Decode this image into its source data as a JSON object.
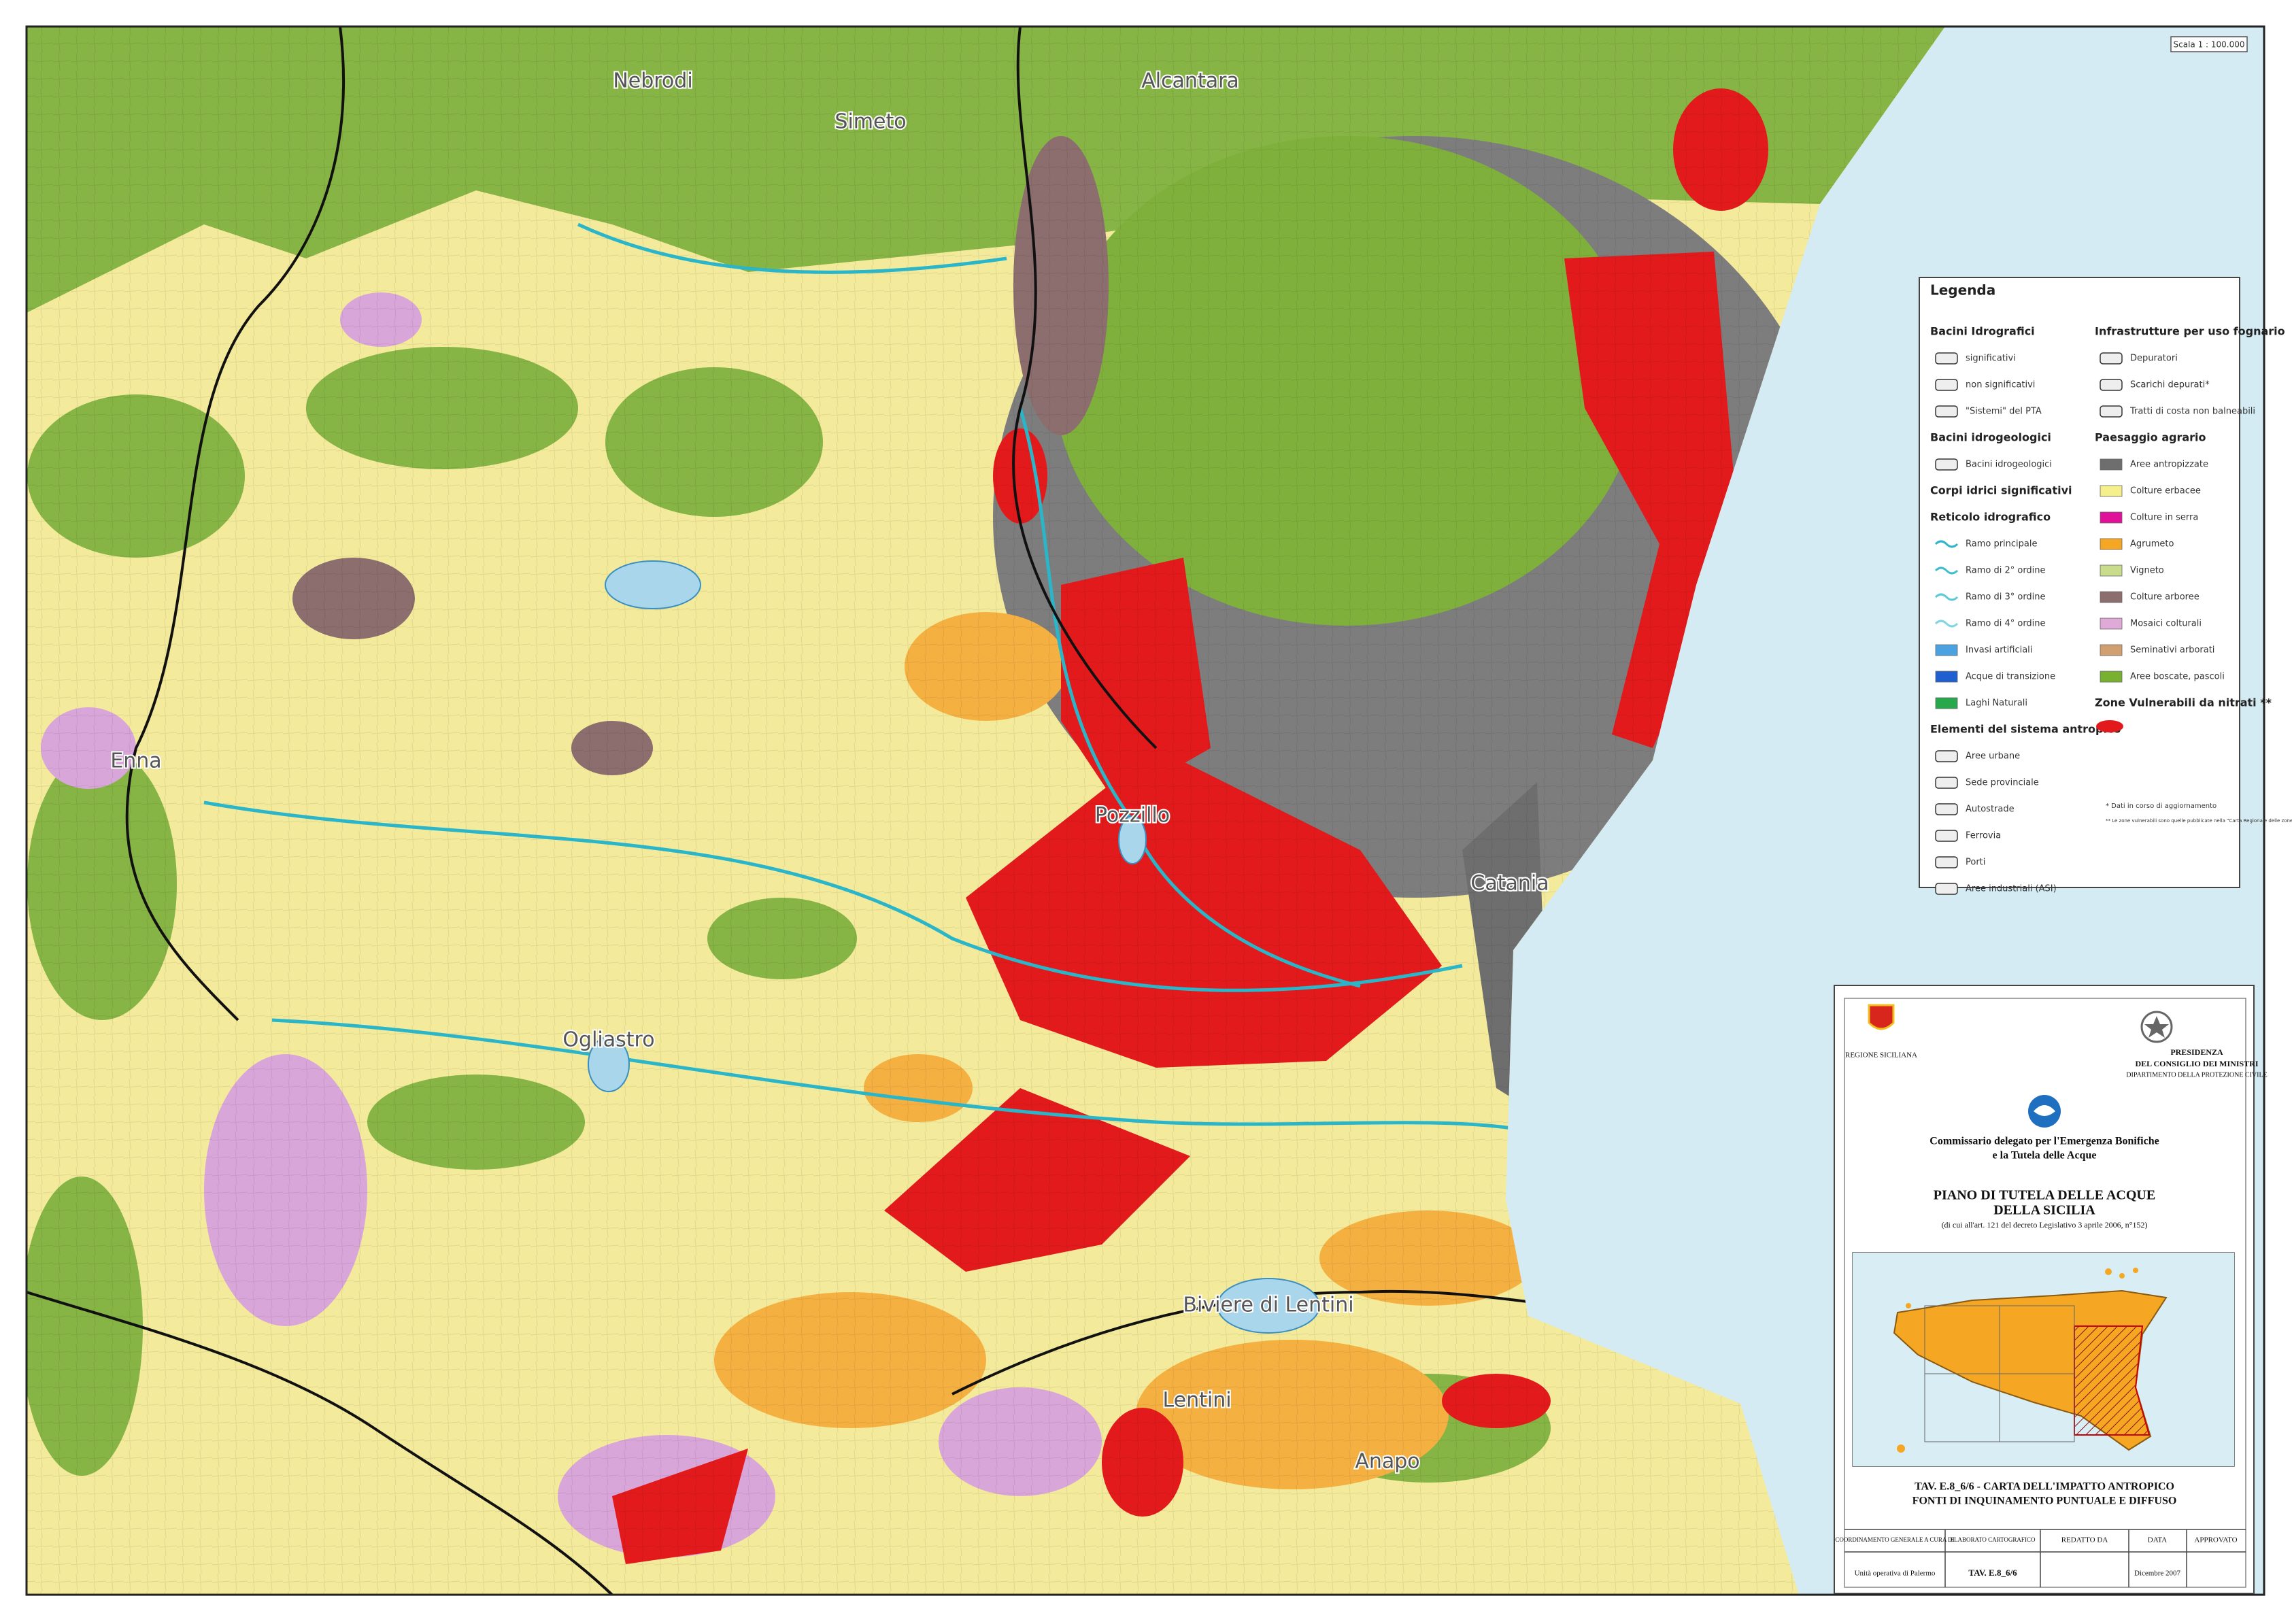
{
  "scale": "Scala 1 : 100.000",
  "map_labels": [
    "Nebrodi",
    "Simeto",
    "Alcantara",
    "Catania",
    "Enna",
    "Lentini",
    "Anapo",
    "Pozzillo",
    "Ogliastro",
    "Biviere di Lentini"
  ],
  "legend": {
    "title": "Legenda",
    "left": [
      {
        "heading": "Bacini Idrografici",
        "items": [
          "significativi",
          "non significativi",
          "\"Sistemi\" del PTA"
        ]
      },
      {
        "heading": "Bacini idrogeologici",
        "items": [
          "Bacini idrogeologici"
        ]
      },
      {
        "heading": "Corpi idrici significativi",
        "items": []
      },
      {
        "heading": "Reticolo idrografico",
        "items": [
          "Ramo principale",
          "Ramo di 2° ordine",
          "Ramo di 3° ordine",
          "Ramo di 4° ordine",
          "Invasi artificiali",
          "Acque di transizione",
          "Laghi Naturali"
        ],
        "colors": [
          "#2bb5c8",
          "#3fbfd0",
          "#5ccad8",
          "#7fd6e0",
          "#4aa3e0",
          "#1f5fd0",
          "#27a84a"
        ]
      },
      {
        "heading": "Elementi del sistema antropico",
        "items": [
          "Aree urbane",
          "Sede provinciale",
          "Autostrade",
          "Ferrovia",
          "Porti",
          "Aree industriali (ASI)"
        ]
      }
    ],
    "right": [
      {
        "heading": "Infrastrutture per uso fognario",
        "items": [
          "Depuratori",
          "Scarichi depurati*",
          "Tratti di costa non balneabili"
        ]
      },
      {
        "heading": "Paesaggio agrario",
        "items": [
          "Aree antropizzate",
          "Colture erbacee",
          "Colture in serra",
          "Agrumeto",
          "Vigneto",
          "Colture arboree",
          "Mosaici colturali",
          "Seminativi arborati",
          "Aree boscate, pascoli"
        ],
        "colors": [
          "#6e6e6e",
          "#f5f08c",
          "#e0109a",
          "#f5a623",
          "#c8dc8c",
          "#8c6e6e",
          "#e0aad8",
          "#d2a070",
          "#78b030"
        ]
      },
      {
        "heading": "Zone Vulnerabili da nitrati **",
        "items": [],
        "color": "#e31a1c"
      }
    ],
    "notes": [
      "* Dati in corso di aggiornamento",
      "** Le zone vulnerabili sono quelle pubblicate nella \"Carta Regionale delle zone vulnerabili da nitrati di origine agricola\" prodotta dall'Ass. Territorio e Ambiente in collaborazione con l'Ass. Agricoltura e Foreste"
    ]
  },
  "title_block": {
    "region": "REGIONE SICILIANA",
    "presidency": [
      "PRESIDENZA",
      "DEL CONSIGLIO DEI MINISTRI",
      "DIPARTIMENTO DELLA PROTEZIONE CIVILE"
    ],
    "commissioner": [
      "Commissario delegato per l'Emergenza Bonifiche",
      "e la Tutela delle Acque"
    ],
    "plan": [
      "PIANO DI TUTELA DELLE ACQUE",
      "DELLA SICILIA",
      "(di cui all'art. 121 del decreto Legislativo 3 aprile 2006, n°152)"
    ],
    "sheet": [
      "TAV. E.8_6/6 - CARTA DELL'IMPATTO ANTROPICO",
      "FONTI DI INQUINAMENTO PUNTUALE E DIFFUSO"
    ],
    "table": {
      "headers": [
        "COORDINAMENTO GENERALE A CURA DI",
        "ELABORATO CARTOGRAFICO",
        "REDATTO DA",
        "DATA",
        "APPROVATO"
      ],
      "row": [
        "Unità operativa di Palermo",
        "TAV. E.8_6/6",
        "",
        "Dicembre 2007",
        ""
      ]
    }
  }
}
